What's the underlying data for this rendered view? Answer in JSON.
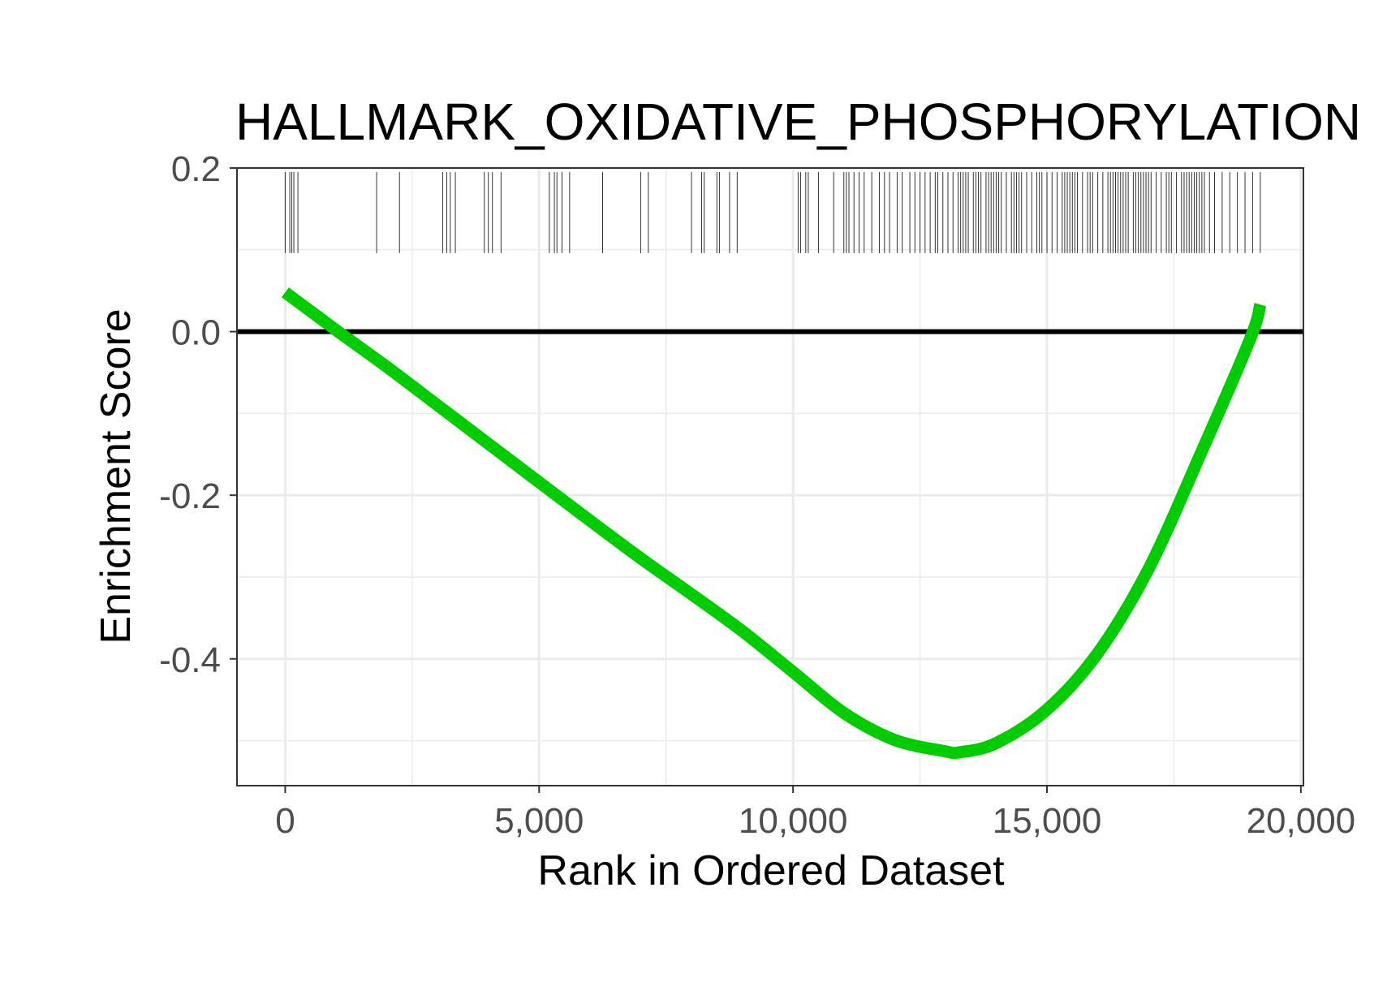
{
  "chart_data": {
    "type": "line",
    "title": "HALLMARK_OXIDATIVE_PHOSPHORYLATION",
    "xlabel": "Rank in Ordered Dataset",
    "ylabel": "Enrichment Score",
    "xlim": [
      -950,
      20050
    ],
    "ylim": [
      -0.555,
      0.2
    ],
    "x_ticks": [
      0,
      5000,
      10000,
      15000,
      20000
    ],
    "x_tick_labels": [
      "0",
      "5,000",
      "10,000",
      "15,000",
      "20,000"
    ],
    "y_ticks": [
      0.2,
      0.0,
      -0.2,
      -0.4
    ],
    "y_tick_labels": [
      "0.2",
      "0.0",
      "-0.2",
      "-0.4"
    ],
    "grid": true,
    "reference_line_y": 0,
    "series": [
      {
        "color": "#00cc00",
        "x": [
          0,
          1000,
          2000,
          3000,
          4000,
          5000,
          6000,
          7000,
          8000,
          9000,
          10000,
          11000,
          12000,
          13000,
          13300,
          14000,
          15000,
          16000,
          17000,
          18000,
          19000,
          19200
        ],
        "y": [
          0.048,
          0.002,
          -0.043,
          -0.09,
          -0.137,
          -0.184,
          -0.231,
          -0.277,
          -0.321,
          -0.366,
          -0.416,
          -0.466,
          -0.499,
          -0.513,
          -0.514,
          -0.503,
          -0.462,
          -0.393,
          -0.29,
          -0.153,
          -0.009,
          0.033
        ]
      }
    ],
    "gene_hits": [
      0,
      90,
      130,
      170,
      250,
      1800,
      2250,
      3100,
      3180,
      3250,
      3350,
      3920,
      4000,
      4080,
      4250,
      5200,
      5300,
      5350,
      5450,
      5600,
      6250,
      7000,
      7150,
      8000,
      8200,
      8250,
      8500,
      8550,
      8750,
      8900,
      10100,
      10150,
      10250,
      10300,
      10500,
      10800,
      11000,
      11050,
      11100,
      11200,
      11300,
      11400,
      11550,
      11700,
      11800,
      11900,
      12050,
      12150,
      12300,
      12400,
      12500,
      12600,
      12700,
      12800,
      12850,
      12950,
      13050,
      13150,
      13250,
      13300,
      13350,
      13400,
      13450,
      13550,
      13600,
      13650,
      13700,
      13800,
      13850,
      13900,
      13950,
      14000,
      14050,
      14100,
      14200,
      14300,
      14350,
      14400,
      14450,
      14500,
      14600,
      14700,
      14800,
      14850,
      14900,
      15000,
      15100,
      15200,
      15300,
      15350,
      15400,
      15450,
      15500,
      15550,
      15600,
      15700,
      15800,
      15850,
      15900,
      16000,
      16100,
      16200,
      16250,
      16300,
      16350,
      16400,
      16450,
      16500,
      16550,
      16600,
      16700,
      16750,
      16800,
      16850,
      16900,
      16950,
      17000,
      17050,
      17150,
      17250,
      17350,
      17400,
      17450,
      17550,
      17650,
      17700,
      17750,
      17800,
      17850,
      17900,
      17950,
      18000,
      18050,
      18100,
      18200,
      18300,
      18450,
      18600,
      18750,
      18900,
      19050,
      19200
    ]
  }
}
